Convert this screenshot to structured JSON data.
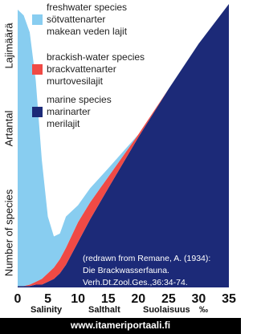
{
  "chart_data": {
    "type": "stacked-area",
    "x": [
      0,
      1,
      2,
      3,
      4,
      5,
      6,
      7,
      8,
      10,
      12,
      15,
      20,
      25,
      30,
      35
    ],
    "series": [
      {
        "name": [
          "freshwater species",
          "sötvattenarter",
          "makean veden lajit"
        ],
        "color": "#88cdf0",
        "values": [
          97.5,
          95.5,
          89,
          71,
          42,
          20,
          11,
          9,
          11,
          6,
          5,
          3,
          0,
          0,
          0,
          0
        ]
      },
      {
        "name": [
          "brackish-water species",
          "brackvattenarter",
          "murtovesilajit"
        ],
        "color": "#f04a45",
        "values": [
          0,
          0,
          0.5,
          1,
          2,
          3,
          4,
          5,
          6,
          7,
          6,
          4,
          1,
          0,
          0,
          0
        ]
      },
      {
        "name": [
          "marine species",
          "marinarter",
          "merilajit"
        ],
        "color": "#1c2a78",
        "values": [
          0.5,
          0.5,
          0.5,
          1,
          1,
          2,
          3,
          5,
          8,
          16,
          24,
          35,
          53,
          70,
          86,
          100
        ]
      }
    ],
    "xlim": [
      0,
      35
    ],
    "xticks": [
      0,
      5,
      10,
      15,
      20,
      25,
      30,
      35
    ],
    "ylim": [
      0,
      100
    ],
    "x_label": [
      "Salinity",
      "Salthalt",
      "Suolaisuus",
      "‰"
    ],
    "y_label": [
      "Number of species",
      "Artantal",
      "Lajimäärä"
    ],
    "annotation": [
      "(redrawn from Remane, A. (1934):",
      "Die Brackwasserfauna.",
      "Verh.Dt.Zool.Ges.,36:34-74."
    ],
    "footer": "www.itameriportaali.fi"
  }
}
